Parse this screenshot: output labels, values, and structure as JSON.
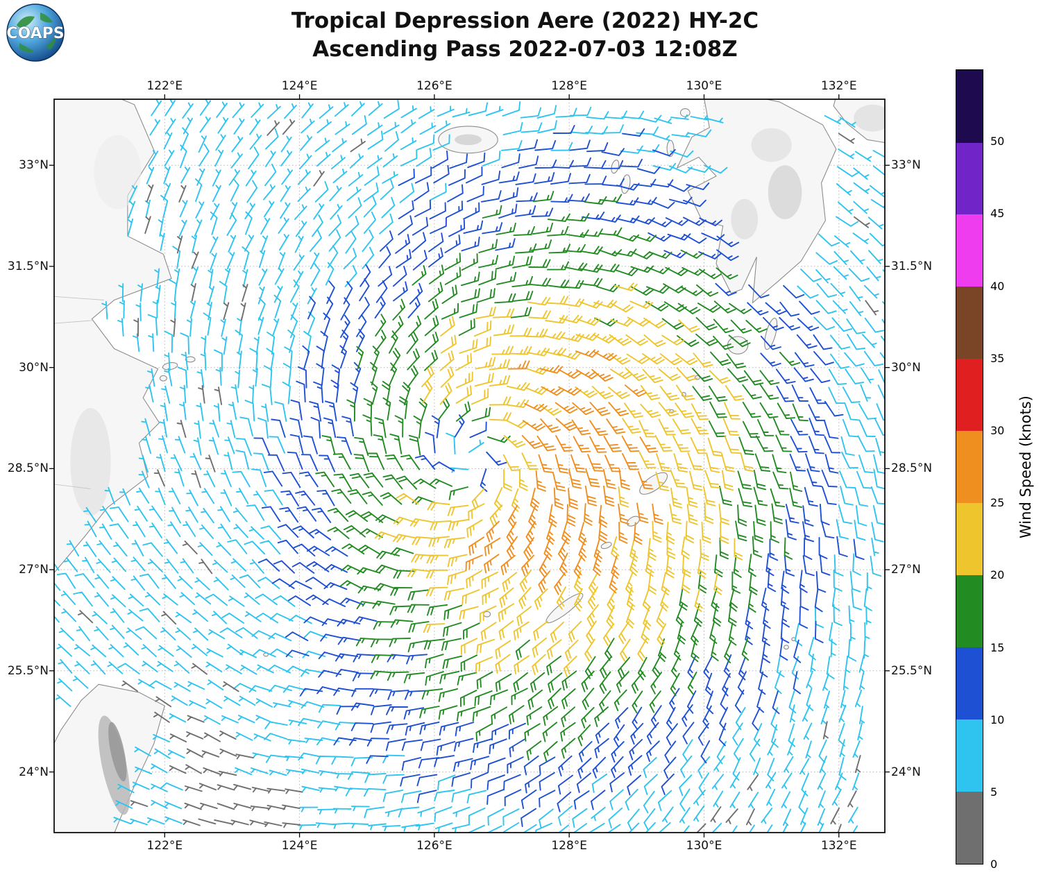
{
  "header": {
    "logo_text": "COAPS",
    "title_line1": "Tropical Depression Aere (2022) HY-2C",
    "title_line2": "Ascending Pass 2022-07-03 12:08Z"
  },
  "map": {
    "x_axis": {
      "ticks": [
        {
          "label": "122°E",
          "value": 122
        },
        {
          "label": "124°E",
          "value": 124
        },
        {
          "label": "126°E",
          "value": 126
        },
        {
          "label": "128°E",
          "value": 128
        },
        {
          "label": "130°E",
          "value": 130
        },
        {
          "label": "132°E",
          "value": 132
        }
      ]
    },
    "y_axis": {
      "ticks": [
        {
          "label": "33°N",
          "value": 33
        },
        {
          "label": "31.5°N",
          "value": 31.5
        },
        {
          "label": "30°N",
          "value": 30
        },
        {
          "label": "28.5°N",
          "value": 28.5
        },
        {
          "label": "27°N",
          "value": 27
        },
        {
          "label": "25.5°N",
          "value": 25.5
        },
        {
          "label": "24°N",
          "value": 24
        }
      ]
    },
    "extent": {
      "lon_min": 120.36,
      "lon_max": 132.68,
      "lat_min": 23.1,
      "lat_max": 33.98
    },
    "landmasses": [
      "china-coast",
      "taiwan",
      "kyushu-japan",
      "jeju-island",
      "okinawa",
      "amami-oshima",
      "yakushima-tanegashima",
      "goto-islands",
      "daito-islands"
    ]
  },
  "colorbar": {
    "title": "Wind Speed (knots)",
    "ticks": [
      0,
      5,
      10,
      15,
      20,
      25,
      30,
      35,
      40,
      45,
      50
    ],
    "max_value": 55,
    "segments": [
      {
        "from": 0,
        "to": 5,
        "color": "#6f6f6f"
      },
      {
        "from": 5,
        "to": 10,
        "color": "#2fc4f0"
      },
      {
        "from": 10,
        "to": 15,
        "color": "#1d50d2"
      },
      {
        "from": 15,
        "to": 20,
        "color": "#228b22"
      },
      {
        "from": 20,
        "to": 25,
        "color": "#efc52e"
      },
      {
        "from": 25,
        "to": 30,
        "color": "#ef8f1f"
      },
      {
        "from": 30,
        "to": 35,
        "color": "#e02020"
      },
      {
        "from": 35,
        "to": 40,
        "color": "#7a4526"
      },
      {
        "from": 40,
        "to": 45,
        "color": "#ee3cee"
      },
      {
        "from": 45,
        "to": 50,
        "color": "#7125c8"
      },
      {
        "from": 50,
        "to": 55,
        "color": "#1e0a4e"
      }
    ]
  },
  "chart_data": {
    "type": "scatter",
    "subtype": "wind-barb-vector-field",
    "title": "Tropical Depression Aere (2022) HY-2C",
    "subtitle": "Ascending Pass 2022-07-03 12:08Z",
    "xlabel": "Longitude",
    "ylabel": "Latitude",
    "xlim": [
      120.36,
      132.68
    ],
    "ylim": [
      23.1,
      33.98
    ],
    "x_ticks_deg_e": [
      122,
      124,
      126,
      128,
      130,
      132
    ],
    "y_ticks_deg_n": [
      24,
      25.5,
      27,
      28.5,
      30,
      31.5,
      33
    ],
    "grid": true,
    "legend_position": "right-colorbar",
    "colorbar_label": "Wind Speed (knots)",
    "colorbar_ticks_kt": [
      0,
      5,
      10,
      15,
      20,
      25,
      30,
      35,
      40,
      45,
      50
    ],
    "barb_convention": "half barb = 5 kt, full barb = 10 kt",
    "storm_center": {
      "lon_e": 126.55,
      "lat_n": 28.65
    },
    "circulation": "cyclonic (counterclockwise)",
    "grid_spacing_deg": 0.25,
    "observed_speed_range_kt": [
      2,
      29
    ],
    "speed_field_summary": [
      {
        "region": "east-northeast of center, radius ~1 deg",
        "speed_kt": "25-30",
        "color": "orange"
      },
      {
        "region": "broad band east/southeast 127-131E toward Ryukyus",
        "speed_kt": "15-25",
        "color": "green-yellow"
      },
      {
        "region": "ring around center, west side",
        "speed_kt": "15-20",
        "color": "green"
      },
      {
        "region": "western half 122-125E",
        "speed_kt": "10-15",
        "color": "blue"
      },
      {
        "region": "far west and southwest near China coast",
        "speed_kt": "5-10",
        "color": "cyan"
      },
      {
        "region": "lee of Taiwan ~123E 23.5-24.5N",
        "speed_kt": "0-5",
        "color": "gray"
      }
    ],
    "sample_points": [
      {
        "lon_e": 127.6,
        "lat_n": 29.0,
        "speed_kt": 27,
        "dir_toward_deg": 126
      },
      {
        "lon_e": 129.5,
        "lat_n": 30.5,
        "speed_kt": 20,
        "dir_toward_deg": 140
      },
      {
        "lon_e": 125.0,
        "lat_n": 31.5,
        "speed_kt": 11,
        "dir_toward_deg": 227
      },
      {
        "lon_e": 123.0,
        "lat_n": 26.5,
        "speed_kt": 6,
        "dir_toward_deg": 319
      },
      {
        "lon_e": 130.5,
        "lat_n": 27.0,
        "speed_kt": 19,
        "dir_toward_deg": 85
      },
      {
        "lon_e": 126.5,
        "lat_n": 24.5,
        "speed_kt": 14,
        "dir_toward_deg": 19
      },
      {
        "lon_e": 121.5,
        "lat_n": 29.5,
        "speed_kt": 7,
        "dir_toward_deg": 279
      },
      {
        "lon_e": 128.8,
        "lat_n": 28.3,
        "speed_kt": 24,
        "dir_toward_deg": 99
      },
      {
        "lon_e": 124.0,
        "lat_n": 24.0,
        "speed_kt": 4,
        "dir_toward_deg": 345
      },
      {
        "lon_e": 126.0,
        "lat_n": 33.0,
        "speed_kt": 9,
        "dir_toward_deg": 205
      },
      {
        "lon_e": 131.5,
        "lat_n": 33.0,
        "speed_kt": 7,
        "dir_toward_deg": 149
      },
      {
        "lon_e": 125.8,
        "lat_n": 28.2,
        "speed_kt": 19,
        "dir_toward_deg": 319
      }
    ]
  }
}
